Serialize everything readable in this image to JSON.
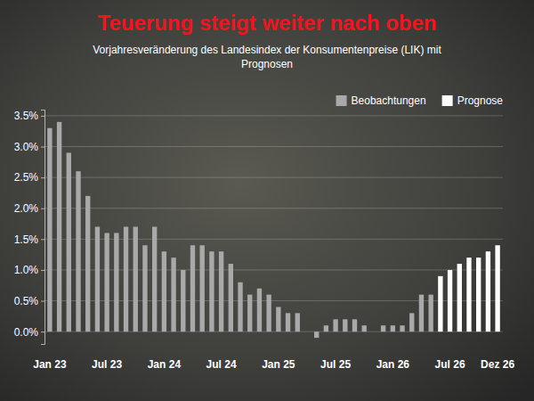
{
  "chart_data": {
    "type": "bar",
    "title": "Teuerung steigt weiter nach oben",
    "subtitle": "Vorjahresveränderung des Landesindex der Konsumentenpreise (LIK) mit Prognosen",
    "categories": [
      "Jan 23",
      null,
      null,
      null,
      null,
      null,
      "Jul 23",
      null,
      null,
      null,
      null,
      null,
      "Jan 24",
      null,
      null,
      null,
      null,
      null,
      "Jul 24",
      null,
      null,
      null,
      null,
      null,
      "Jan 25",
      null,
      null,
      null,
      null,
      null,
      "Jul 25",
      null,
      null,
      null,
      null,
      null,
      "Jan 26",
      null,
      null,
      null,
      null,
      null,
      "Jul 26",
      null,
      null,
      null,
      null,
      "Dez 26"
    ],
    "series": [
      {
        "name": "Beobachtungen",
        "color": "#a9a9a9",
        "values": [
          3.3,
          3.4,
          2.9,
          2.6,
          2.2,
          1.7,
          1.6,
          1.6,
          1.7,
          1.7,
          1.4,
          1.7,
          1.3,
          1.2,
          1.0,
          1.4,
          1.4,
          1.3,
          1.3,
          1.1,
          0.8,
          0.6,
          0.7,
          0.6,
          0.4,
          0.3,
          0.3,
          0.0,
          -0.1,
          0.1,
          0.2,
          0.2,
          0.2,
          0.1,
          0.0,
          0.1,
          0.1,
          0.1,
          0.3,
          0.6,
          0.6,
          null,
          null,
          null,
          null,
          null,
          null,
          null
        ]
      },
      {
        "name": "Prognose",
        "color": "#ffffff",
        "values": [
          null,
          null,
          null,
          null,
          null,
          null,
          null,
          null,
          null,
          null,
          null,
          null,
          null,
          null,
          null,
          null,
          null,
          null,
          null,
          null,
          null,
          null,
          null,
          null,
          null,
          null,
          null,
          null,
          null,
          null,
          null,
          null,
          null,
          null,
          null,
          null,
          null,
          null,
          null,
          null,
          null,
          0.9,
          1.0,
          1.1,
          1.2,
          1.2,
          1.3,
          1.4
        ]
      }
    ],
    "ylim": [
      -0.2,
      3.6
    ],
    "yticks": [
      {
        "value": 0,
        "label": "0.0%"
      },
      {
        "value": 0.5,
        "label": "0.5%"
      },
      {
        "value": 1,
        "label": "1.0%"
      },
      {
        "value": 1.5,
        "label": "1.5%"
      },
      {
        "value": 2,
        "label": "2.0%"
      },
      {
        "value": 2.5,
        "label": "2.5%"
      },
      {
        "value": 3,
        "label": "3.0%"
      },
      {
        "value": 3.5,
        "label": "3.5%"
      }
    ],
    "grid": true,
    "legend": "top-right"
  }
}
